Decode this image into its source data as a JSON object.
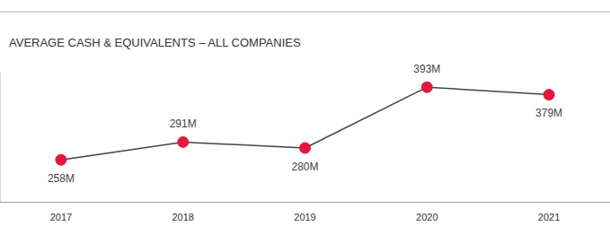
{
  "chart_data": {
    "type": "line",
    "title": "AVERAGE CASH & EQUIVALENTS – ALL COMPANIES",
    "categories": [
      "2017",
      "2018",
      "2019",
      "2020",
      "2021"
    ],
    "values": [
      258,
      291,
      280,
      393,
      379
    ],
    "value_labels": [
      "258M",
      "291M",
      "280M",
      "393M",
      "379M"
    ],
    "color": "#e4173e",
    "marker": "circle",
    "data_labels": true,
    "ylim": [
      180,
      420
    ],
    "yticks": [],
    "tick_labels": "x",
    "grid": false
  }
}
